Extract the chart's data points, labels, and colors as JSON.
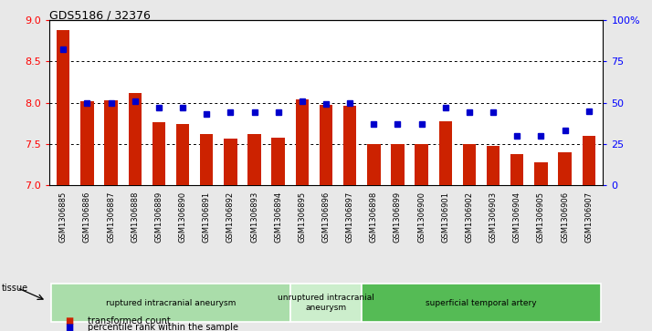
{
  "title": "GDS5186 / 32376",
  "samples": [
    "GSM1306885",
    "GSM1306886",
    "GSM1306887",
    "GSM1306888",
    "GSM1306889",
    "GSM1306890",
    "GSM1306891",
    "GSM1306892",
    "GSM1306893",
    "GSM1306894",
    "GSM1306895",
    "GSM1306896",
    "GSM1306897",
    "GSM1306898",
    "GSM1306899",
    "GSM1306900",
    "GSM1306901",
    "GSM1306902",
    "GSM1306903",
    "GSM1306904",
    "GSM1306905",
    "GSM1306906",
    "GSM1306907"
  ],
  "transformed_count": [
    8.88,
    8.02,
    8.03,
    8.12,
    7.76,
    7.74,
    7.62,
    7.56,
    7.62,
    7.58,
    8.04,
    7.97,
    7.96,
    7.5,
    7.5,
    7.5,
    7.77,
    7.5,
    7.48,
    7.38,
    7.28,
    7.4,
    7.6
  ],
  "percentile_rank": [
    82,
    50,
    50,
    51,
    47,
    47,
    43,
    44,
    44,
    44,
    51,
    49,
    50,
    37,
    37,
    37,
    47,
    44,
    44,
    30,
    30,
    33,
    45
  ],
  "groups": [
    {
      "label": "ruptured intracranial aneurysm",
      "start": 0,
      "end": 9,
      "color": "#aaddaa"
    },
    {
      "label": "unruptured intracranial\naneurysm",
      "start": 10,
      "end": 12,
      "color": "#cceecc"
    },
    {
      "label": "superficial temporal artery",
      "start": 13,
      "end": 22,
      "color": "#55bb55"
    }
  ],
  "bar_color": "#cc2200",
  "dot_color": "#0000cc",
  "ylim_left": [
    7.0,
    9.0
  ],
  "ylim_right": [
    0,
    100
  ],
  "yticks_left": [
    7.0,
    7.5,
    8.0,
    8.5,
    9.0
  ],
  "yticks_right": [
    0,
    25,
    50,
    75,
    100
  ],
  "grid_lines": [
    7.5,
    8.0,
    8.5
  ],
  "background_color": "#e8e8e8",
  "plot_bg_color": "#ffffff",
  "legend_items": [
    {
      "label": "transformed count",
      "color": "#cc2200"
    },
    {
      "label": "percentile rank within the sample",
      "color": "#0000cc"
    }
  ],
  "tissue_label": "tissue",
  "figsize": [
    7.14,
    3.63
  ],
  "dpi": 100
}
